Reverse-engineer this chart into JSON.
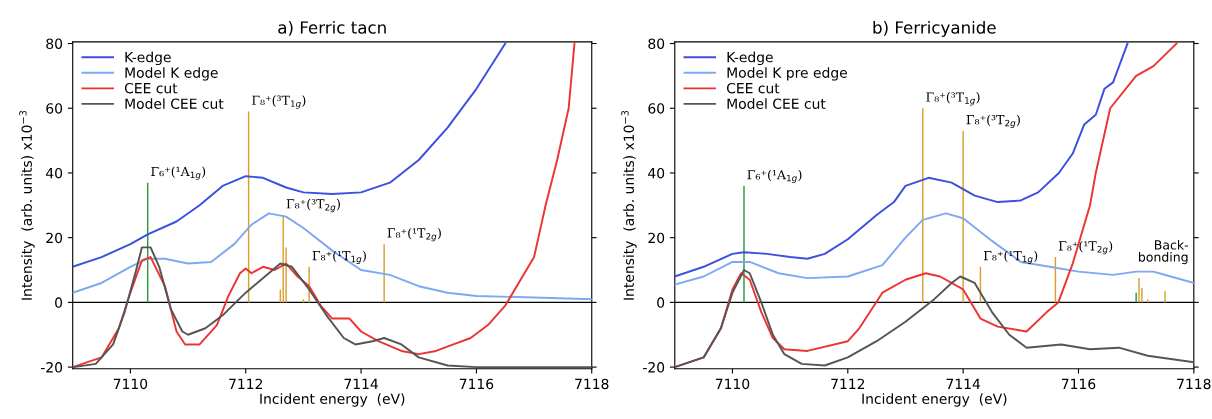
{
  "chart_data": [
    {
      "type": "line",
      "title": "a) Ferric tacn",
      "xlabel": "Incident energy  (eV)",
      "ylabel": "Intensity  (arb. units) x10$^{−3}$",
      "xlim": [
        7109,
        7118
      ],
      "xticks": [
        7110,
        7112,
        7114,
        7116,
        7118
      ],
      "ylim": [
        -20.5,
        80.5
      ],
      "yticks": [
        -20,
        0,
        20,
        40,
        60,
        80
      ],
      "grid": false,
      "legend": "top left",
      "marker": "none",
      "line_style": "solid",
      "ref_lines": [
        {
          "axis": "y",
          "value": 0,
          "color": "#000000"
        }
      ],
      "series": [
        {
          "name": "K-edge",
          "color": "#3b4fe0",
          "x": [
            7109,
            7109.5,
            7110,
            7110.3,
            7110.8,
            7111.2,
            7111.6,
            7112.0,
            7112.3,
            7112.7,
            7113.0,
            7113.5,
            7114.0,
            7114.5,
            7115.0,
            7115.5,
            7116.0,
            7116.5
          ],
          "values": [
            11,
            14,
            18,
            21,
            25,
            30,
            36,
            39,
            38.5,
            35.5,
            34,
            33.5,
            34,
            37,
            44,
            54,
            66,
            80
          ]
        },
        {
          "name": "Model K edge",
          "color": "#7fa8f2",
          "x": [
            7109,
            7109.5,
            7110,
            7110.3,
            7110.6,
            7111.0,
            7111.4,
            7111.8,
            7112.1,
            7112.4,
            7112.7,
            7113.0,
            7113.5,
            7114.0,
            7114.5,
            7115.0,
            7115.5,
            7116,
            7117,
            7118
          ],
          "values": [
            3,
            6,
            11,
            13.5,
            13.5,
            12,
            12.5,
            18,
            24,
            27.5,
            26.5,
            23,
            16,
            10,
            8.5,
            5,
            3,
            2,
            1.5,
            1
          ]
        },
        {
          "name": "CEE cut",
          "color": "#ee3333",
          "x": [
            7109,
            7109.5,
            7109.8,
            7110.0,
            7110.2,
            7110.35,
            7110.6,
            7110.8,
            7110.95,
            7111.2,
            7111.5,
            7111.7,
            7111.9,
            7112.0,
            7112.1,
            7112.3,
            7112.5,
            7112.7,
            7112.9,
            7113.1,
            7113.3,
            7113.5,
            7113.8,
            7114.0,
            7114.3,
            7114.7,
            7115.0,
            7115.3,
            7115.6,
            7115.9,
            7116.2,
            7116.5,
            7116.8,
            7117.0,
            7117.2,
            7117.4,
            7117.6,
            7117.7
          ],
          "values": [
            -20,
            -17,
            -8,
            3,
            13,
            14,
            5,
            -9,
            -13,
            -13,
            -7,
            2,
            9,
            10.5,
            9,
            11,
            10,
            12,
            8,
            5,
            -1,
            -5,
            -5,
            -9,
            -12,
            -15,
            -16,
            -15,
            -13,
            -11,
            -7,
            -1,
            8,
            14,
            30,
            44,
            60,
            80
          ]
        },
        {
          "name": "Model CEE cut",
          "color": "#555555",
          "x": [
            7109,
            7109.4,
            7109.7,
            7109.9,
            7110.1,
            7110.2,
            7110.35,
            7110.5,
            7110.7,
            7110.9,
            7111.0,
            7111.3,
            7111.6,
            7112.0,
            7112.4,
            7112.6,
            7112.8,
            7113.1,
            7113.4,
            7113.7,
            7113.9,
            7114.2,
            7114.4,
            7114.7,
            7115.0,
            7115.5,
            7116,
            7118
          ],
          "values": [
            -20,
            -19,
            -13,
            -3,
            10,
            17,
            17,
            11,
            -2,
            -9,
            -10,
            -8,
            -4,
            3,
            9,
            12,
            11,
            4,
            -4,
            -11,
            -13,
            -12,
            -11,
            -13,
            -17,
            -19.5,
            -20,
            -20
          ]
        },
        {
          "type": "bar",
          "color": "#2b9a3b",
          "x": [
            7110.3
          ],
          "values": [
            37
          ]
        },
        {
          "type": "bar",
          "color": "#d9a030",
          "x": [
            7112.05,
            7112.6,
            7112.65,
            7112.7,
            7113.0,
            7113.1,
            7114.4
          ],
          "values": [
            59,
            4,
            27,
            17,
            1,
            11,
            18
          ]
        }
      ],
      "annotations": [
        {
          "text": "Γ₆⁺(¹A$_{1g}$)",
          "x": 7110.3,
          "y": 37
        },
        {
          "text": "Γ₈⁺(³T$_{1g}$)",
          "x": 7112.05,
          "y": 59
        },
        {
          "text": "Γ₈⁺(³T$_{2g}$)",
          "x": 7112.65,
          "y": 27
        },
        {
          "text": "Γ₈⁺(¹T$_{1g}$)",
          "x": 7113.1,
          "y": 11
        },
        {
          "text": "Γ₈⁺(¹T$_{2g}$)",
          "x": 7114.4,
          "y": 18
        }
      ]
    },
    {
      "type": "line",
      "title": "b) Ferricyanide",
      "xlabel": "Incident energy  (eV)",
      "ylabel": "Intensity  (arb. units) x10$^{−3}$",
      "xlim": [
        7109,
        7118
      ],
      "xticks": [
        7110,
        7112,
        7114,
        7116,
        7118
      ],
      "ylim": [
        -20.5,
        80.5
      ],
      "yticks": [
        -20,
        0,
        20,
        40,
        60,
        80
      ],
      "grid": false,
      "legend": "top left",
      "marker": "none",
      "line_style": "solid",
      "ref_lines": [
        {
          "axis": "y",
          "value": 0,
          "color": "#000000"
        }
      ],
      "series": [
        {
          "name": "K-edge",
          "color": "#3b4fe0",
          "x": [
            7109,
            7109.5,
            7110,
            7110.2,
            7110.6,
            7111.0,
            7111.3,
            7111.6,
            7112.0,
            7112.5,
            7112.8,
            7113.0,
            7113.4,
            7113.8,
            7114.2,
            7114.6,
            7115.0,
            7115.3,
            7115.66,
            7115.9,
            7116.1,
            7116.3,
            7116.45,
            7116.6,
            7116.85
          ],
          "values": [
            8,
            11,
            15,
            15.5,
            15,
            14,
            13.5,
            15,
            19.5,
            27,
            31,
            36,
            38.5,
            37,
            33,
            31,
            31.5,
            34,
            40,
            46,
            55,
            58,
            66,
            68,
            80
          ]
        },
        {
          "name": "Model K pre edge",
          "color": "#7fa8f2",
          "x": [
            7109,
            7109.5,
            7110,
            7110.3,
            7110.8,
            7111.3,
            7112,
            7112.6,
            7113.0,
            7113.3,
            7113.7,
            7114.0,
            7114.5,
            7115.0,
            7115.5,
            7116,
            7116.6,
            7117,
            7117.3,
            7117.6,
            7118
          ],
          "values": [
            5.5,
            8,
            12.5,
            12.5,
            9,
            7.5,
            8,
            11.5,
            20,
            25.5,
            27.5,
            26,
            19,
            12.5,
            11,
            9.5,
            8.5,
            9.5,
            9.5,
            8,
            6
          ]
        },
        {
          "name": "CEE cut",
          "color": "#ee3333",
          "x": [
            7109,
            7109.5,
            7109.8,
            7110.0,
            7110.15,
            7110.3,
            7110.5,
            7110.7,
            7110.9,
            7111.3,
            7112.0,
            7112.2,
            7112.6,
            7113.0,
            7113.35,
            7113.6,
            7114.0,
            7114.3,
            7114.6,
            7115.1,
            7115.45,
            7115.65,
            7115.9,
            7116.2,
            7116.3,
            7116.55,
            7117.0,
            7117.3,
            7117.7
          ],
          "values": [
            -20,
            -17,
            -8,
            4,
            9,
            7,
            -3,
            -11,
            -14.5,
            -15,
            -12,
            -8,
            3,
            7,
            9,
            8,
            4,
            -5,
            -7.5,
            -9,
            -3,
            0,
            12,
            30,
            40,
            60,
            70,
            73,
            80
          ]
        },
        {
          "name": "Model CEE cut",
          "color": "#555555",
          "x": [
            7109,
            7109.5,
            7109.8,
            7110.0,
            7110.2,
            7110.3,
            7110.5,
            7110.7,
            7110.9,
            7111.2,
            7111.6,
            7112.0,
            7112.5,
            7113.0,
            7113.5,
            7113.8,
            7113.95,
            7114.2,
            7114.5,
            7114.8,
            7115.1,
            7115.7,
            7116.2,
            7116.7,
            7117.2,
            7118
          ],
          "values": [
            -20,
            -17,
            -8,
            3,
            10,
            9,
            0,
            -10,
            -16,
            -19,
            -19.5,
            -17,
            -12,
            -6,
            1,
            6,
            8,
            6,
            -3,
            -10,
            -14,
            -13,
            -14.5,
            -14,
            -16.5,
            -18.5
          ]
        },
        {
          "type": "bar",
          "color": "#2b9a3b",
          "x": [
            7110.2,
            7117.0
          ],
          "values": [
            36,
            3
          ]
        },
        {
          "type": "bar",
          "color": "#d9a030",
          "x": [
            7113.3,
            7114.0,
            7114.3,
            7115.6,
            7117.05,
            7117.1,
            7117.2,
            7117.5
          ],
          "values": [
            60,
            53,
            11,
            14,
            7.5,
            4.5,
            1,
            3.5
          ]
        }
      ],
      "annotations": [
        {
          "text": "Γ₆⁺(¹A$_{1g}$)",
          "x": 7110.2,
          "y": 36
        },
        {
          "text": "Γ₈⁺(³T$_{1g}$)",
          "x": 7113.3,
          "y": 60
        },
        {
          "text": "Γ₈⁺(³T$_{2g}$)",
          "x": 7114.0,
          "y": 53
        },
        {
          "text": "Γ₈⁺(¹T$_{1g}$)",
          "x": 7114.3,
          "y": 11
        },
        {
          "text": "Γ₈⁺(¹T$_{2g}$)",
          "x": 7115.6,
          "y": 14
        },
        "Back-\nbonding"
      ]
    }
  ]
}
